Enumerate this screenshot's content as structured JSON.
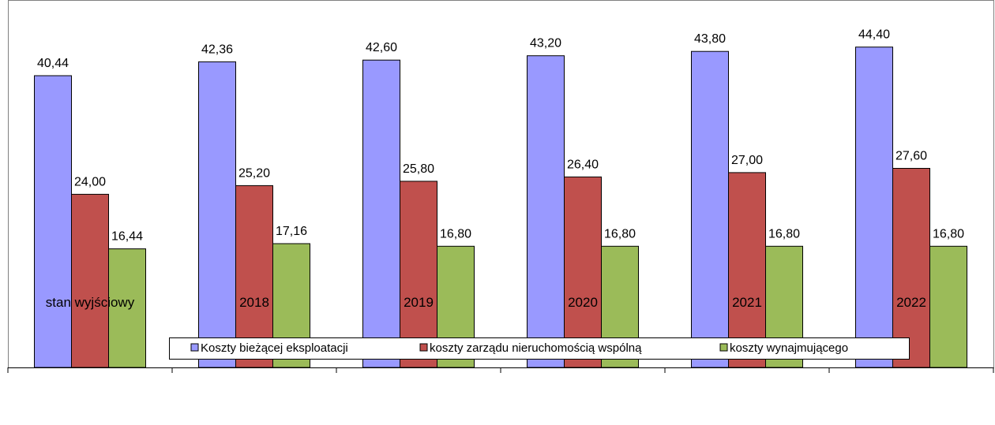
{
  "chart_data": {
    "type": "bar",
    "categories": [
      "stan wyjściowy",
      "2018",
      "2019",
      "2020",
      "2021",
      "2022"
    ],
    "series": [
      {
        "name": "Koszty bieżącej eksploatacji",
        "color": "#9999ff",
        "values": [
          40.44,
          42.36,
          42.6,
          43.2,
          43.8,
          44.4
        ],
        "labels": [
          "40,44",
          "42,36",
          "42,60",
          "43,20",
          "43,80",
          "44,40"
        ]
      },
      {
        "name": "koszty zarządu nieruchomością wspólną",
        "color": "#c0504d",
        "values": [
          24.0,
          25.2,
          25.8,
          26.4,
          27.0,
          27.6
        ],
        "labels": [
          "24,00",
          "25,20",
          "25,80",
          "26,40",
          "27,00",
          "27,60"
        ]
      },
      {
        "name": "koszty wynajmującego",
        "color": "#9bbb59",
        "values": [
          16.44,
          17.16,
          16.8,
          16.8,
          16.8,
          16.8
        ],
        "labels": [
          "16,44",
          "17,16",
          "16,80",
          "16,80",
          "16,80",
          "16,80"
        ]
      }
    ],
    "ylim": [
      0,
      50
    ],
    "grid": false,
    "legend": "bottom"
  }
}
